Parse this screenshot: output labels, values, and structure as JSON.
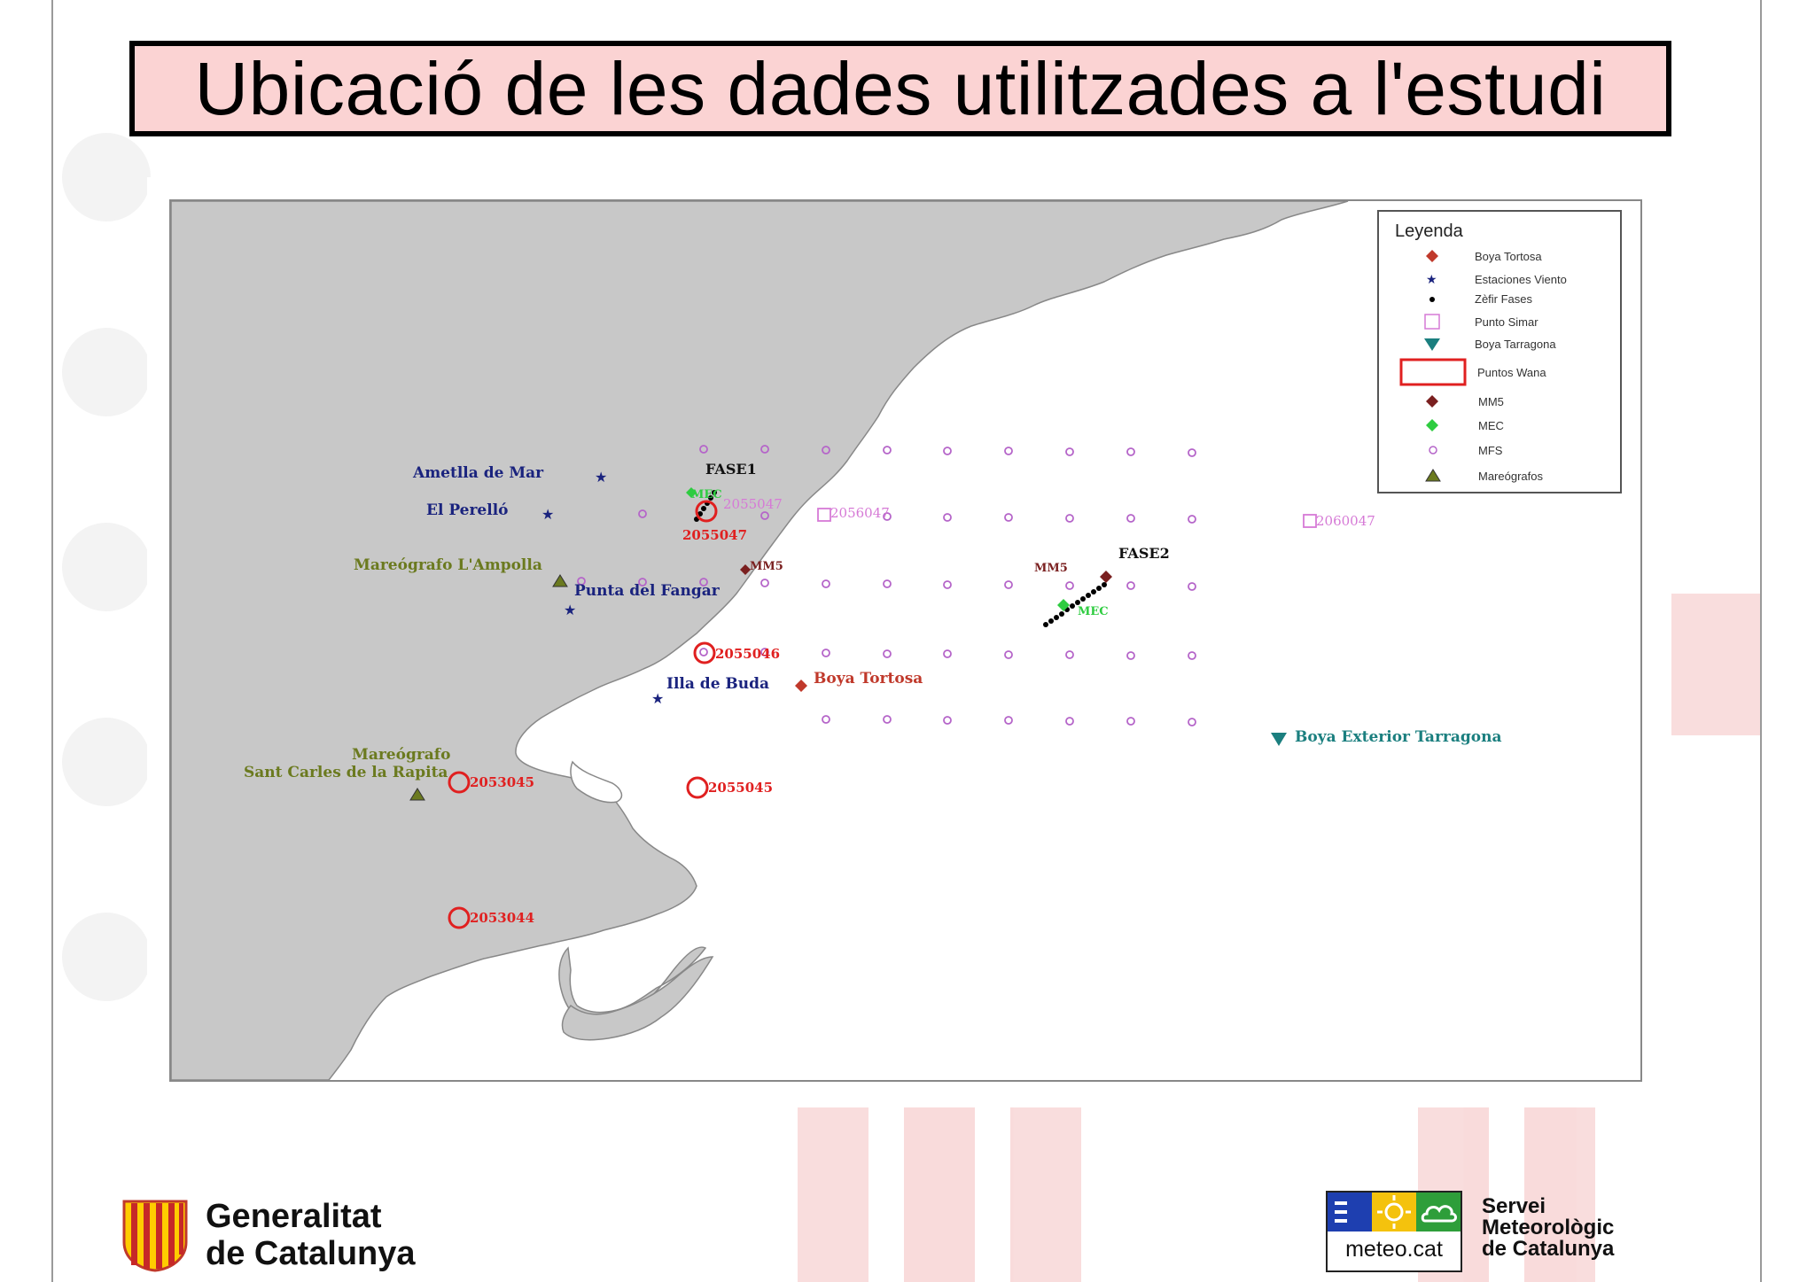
{
  "slide": {
    "title": "Ubicació de les dades utilitzades a l'estudi"
  },
  "colors": {
    "title_bg": "#fbd3d3",
    "land": "#c8c8c8",
    "boya_tortosa": "#c0392b",
    "estaciones_viento": "#1a237e",
    "zefir": "#000000",
    "punto_simar": "#d67ad6",
    "boya_tarragona": "#1b7f7f",
    "puntos_wana": "#e02020",
    "mm5": "#7a1f1f",
    "mec": "#2ecc40",
    "mfs": "#b565c9",
    "mareografos": "#6b7a1f"
  },
  "legend": {
    "title": "Leyenda",
    "items": [
      {
        "label": "Boya Tortosa",
        "symbol": "diamond-red"
      },
      {
        "label": "Estaciones Viento",
        "symbol": "star-blue"
      },
      {
        "label": "Zèfir Fases",
        "symbol": "dot-black"
      },
      {
        "label": "Punto Simar",
        "symbol": "square-pink"
      },
      {
        "label": "Boya Tarragona",
        "symbol": "triangle-down-teal"
      },
      {
        "label": "Puntos Wana",
        "symbol": "rect-red"
      },
      {
        "label": "MM5",
        "symbol": "diamond-darkred"
      },
      {
        "label": "MEC",
        "symbol": "diamond-green"
      },
      {
        "label": "MFS",
        "symbol": "circle-purple"
      },
      {
        "label": "Mareógrafos",
        "symbol": "triangle-olive"
      }
    ]
  },
  "map_labels": {
    "ametlla": "Ametlla de Mar",
    "perello": "El Perelló",
    "mareografo_ampolla": "Mareógrafo L'Ampolla",
    "punta_fangar": "Punta del Fangar",
    "illa_buda": "Illa de Buda",
    "boya_tortosa": "Boya Tortosa",
    "mareografo_rapita_1": "Mareógrafo",
    "mareografo_rapita_2": "Sant Carles de la Rapita",
    "boya_tarragona": "Boya Exterior Tarragona",
    "fase1": "FASE1",
    "fase2": "FASE2",
    "mm5_1": "MM5",
    "mm5_2": "MM5",
    "mec_1": "MEC",
    "mec_2": "MEC"
  },
  "wana_points": [
    "2055047",
    "2055046",
    "2053045",
    "2055045",
    "2053044"
  ],
  "wana_label_2055047_lower": "2055047",
  "simar_points": [
    "2055047",
    "2056047",
    "2060047"
  ],
  "footer": {
    "gen_line1": "Generalitat",
    "gen_line2": "de Catalunya",
    "smc_url": "meteo.cat",
    "smc_line1": "Servei",
    "smc_line2": "Meteorològic",
    "smc_line3": "de Catalunya"
  }
}
